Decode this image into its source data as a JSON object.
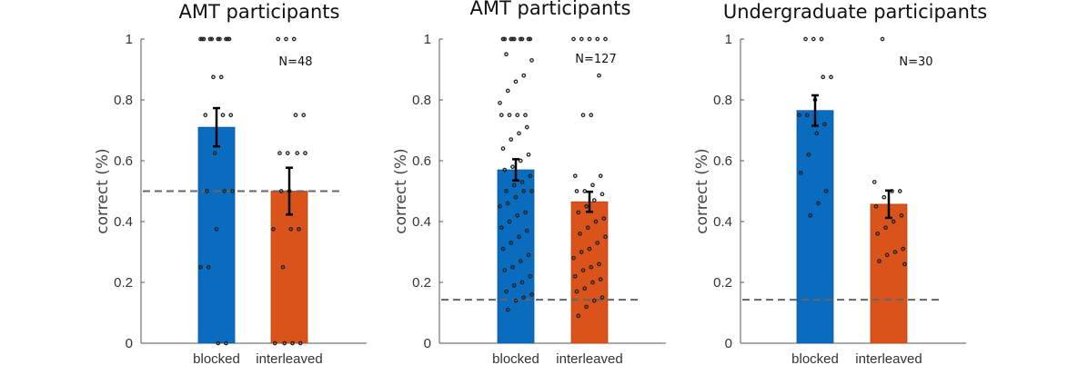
{
  "chart_data": [
    {
      "type": "bar",
      "title": "AMT participants",
      "ylabel": "correct (%)",
      "ylim": [
        0,
        1
      ],
      "yticks": [
        "0",
        "0.2",
        "0.4",
        "0.6",
        "0.8",
        "1"
      ],
      "categories": [
        "blocked",
        "interleaved"
      ],
      "values": [
        0.71,
        0.5
      ],
      "errors": [
        0.063,
        0.077
      ],
      "chance_level": 0.5,
      "annotation": "N=48",
      "points": [
        [
          1,
          1,
          1,
          1,
          1,
          1,
          1,
          1,
          1,
          1,
          0.875,
          0.875,
          0.75,
          0.75,
          0.75,
          0.625,
          0.5,
          0.5,
          0.5,
          0.375,
          0.25,
          0.25,
          0,
          0
        ],
        [
          1,
          1,
          1,
          0.75,
          0.75,
          0.625,
          0.625,
          0.625,
          0.625,
          0.5,
          0.5,
          0.375,
          0.375,
          0.375,
          0.25,
          0,
          0,
          0,
          0
        ]
      ]
    },
    {
      "type": "bar",
      "title": "AMT participants",
      "ylabel": "correct (%)",
      "ylim": [
        0,
        1
      ],
      "yticks": [
        "0",
        "0.2",
        "0.4",
        "0.6",
        "0.8",
        "1"
      ],
      "categories": [
        "blocked",
        "interleaved"
      ],
      "values": [
        0.57,
        0.465
      ],
      "errors": [
        0.035,
        0.033
      ],
      "chance_level": 0.143,
      "annotation": "N=127",
      "points": [
        [
          1,
          1,
          1,
          1,
          1,
          1,
          1,
          1,
          1,
          0.95,
          0.93,
          0.88,
          0.86,
          0.83,
          0.79,
          0.75,
          0.75,
          0.75,
          0.75,
          0.71,
          0.69,
          0.67,
          0.64,
          0.62,
          0.6,
          0.58,
          0.57,
          0.55,
          0.53,
          0.52,
          0.5,
          0.5,
          0.5,
          0.48,
          0.46,
          0.45,
          0.43,
          0.42,
          0.4,
          0.38,
          0.37,
          0.35,
          0.33,
          0.31,
          0.29,
          0.27,
          0.25,
          0.24,
          0.22,
          0.2,
          0.19,
          0.17,
          0.16,
          0.15,
          0.14,
          0.11
        ],
        [
          1,
          1,
          1,
          1,
          1,
          0.88,
          0.75,
          0.75,
          0.55,
          0.55,
          0.52,
          0.5,
          0.5,
          0.49,
          0.47,
          0.45,
          0.43,
          0.41,
          0.4,
          0.38,
          0.36,
          0.35,
          0.33,
          0.31,
          0.3,
          0.28,
          0.26,
          0.25,
          0.24,
          0.22,
          0.21,
          0.2,
          0.18,
          0.17,
          0.15,
          0.14,
          0.12,
          0.09
        ]
      ]
    },
    {
      "type": "bar",
      "title": "Undergraduate participants",
      "ylabel": "correct (%)",
      "ylim": [
        0,
        1
      ],
      "yticks": [
        "0",
        "0.2",
        "0.4",
        "0.6",
        "0.8",
        "1"
      ],
      "categories": [
        "blocked",
        "interleaved"
      ],
      "values": [
        0.765,
        0.457
      ],
      "errors": [
        0.05,
        0.045
      ],
      "chance_level": 0.143,
      "annotation": "N=30",
      "points": [
        [
          1,
          1,
          1,
          0.875,
          0.875,
          0.8,
          0.75,
          0.75,
          0.72,
          0.69,
          0.62,
          0.56,
          0.5,
          0.46,
          0.42
        ],
        [
          1,
          0.53,
          0.5,
          0.5,
          0.48,
          0.45,
          0.42,
          0.4,
          0.38,
          0.36,
          0.31,
          0.3,
          0.29,
          0.27,
          0.26
        ]
      ]
    }
  ],
  "colors": {
    "blocked": "#0a6cbf",
    "interleaved": "#d9531b",
    "axis": "#555555",
    "chance_line": "#666666",
    "dot": "#222222"
  }
}
